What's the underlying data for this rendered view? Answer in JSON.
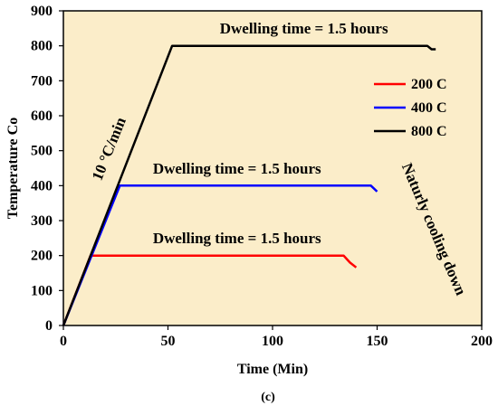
{
  "chart_data": {
    "type": "line",
    "xlabel": "Time (Min)",
    "ylabel": "Temperature Co",
    "xlim": [
      0,
      200
    ],
    "ylim": [
      0,
      900
    ],
    "x_ticks": [
      "0",
      "50",
      "100",
      "150",
      "200"
    ],
    "y_ticks": [
      "0",
      "100",
      "200",
      "300",
      "400",
      "500",
      "600",
      "700",
      "800",
      "900"
    ],
    "grid": false,
    "background_color": "#fbedc9",
    "legend": {
      "placement": "right"
    },
    "series": [
      {
        "name": "200 C",
        "color": "#ff0000",
        "points": [
          [
            0,
            0
          ],
          [
            13,
            200
          ],
          [
            134,
            200
          ],
          [
            137,
            180
          ],
          [
            140,
            166
          ]
        ]
      },
      {
        "name": "400 C",
        "color": "#0000ff",
        "points": [
          [
            0,
            0
          ],
          [
            27,
            400
          ],
          [
            147,
            400
          ],
          [
            150,
            383
          ]
        ]
      },
      {
        "name": "800 C",
        "color": "#000000",
        "points": [
          [
            0,
            0
          ],
          [
            52,
            800
          ],
          [
            174,
            800
          ],
          [
            176,
            790
          ],
          [
            178,
            790
          ]
        ]
      }
    ],
    "annotations": [
      {
        "text": "Dwelling time = 1.5 hours",
        "x": 115,
        "y": 835
      },
      {
        "text": "Dwelling time = 1.5 hours",
        "x": 83,
        "y": 435
      },
      {
        "text": "Dwelling time = 1.5 hours",
        "x": 83,
        "y": 235
      },
      {
        "text": "10 °C/min",
        "x": 24,
        "y": 500,
        "rotation": -68
      },
      {
        "text": "Naturly cooling down",
        "x": 175,
        "y": 270,
        "rotation": 67
      }
    ]
  },
  "caption": "(c)"
}
